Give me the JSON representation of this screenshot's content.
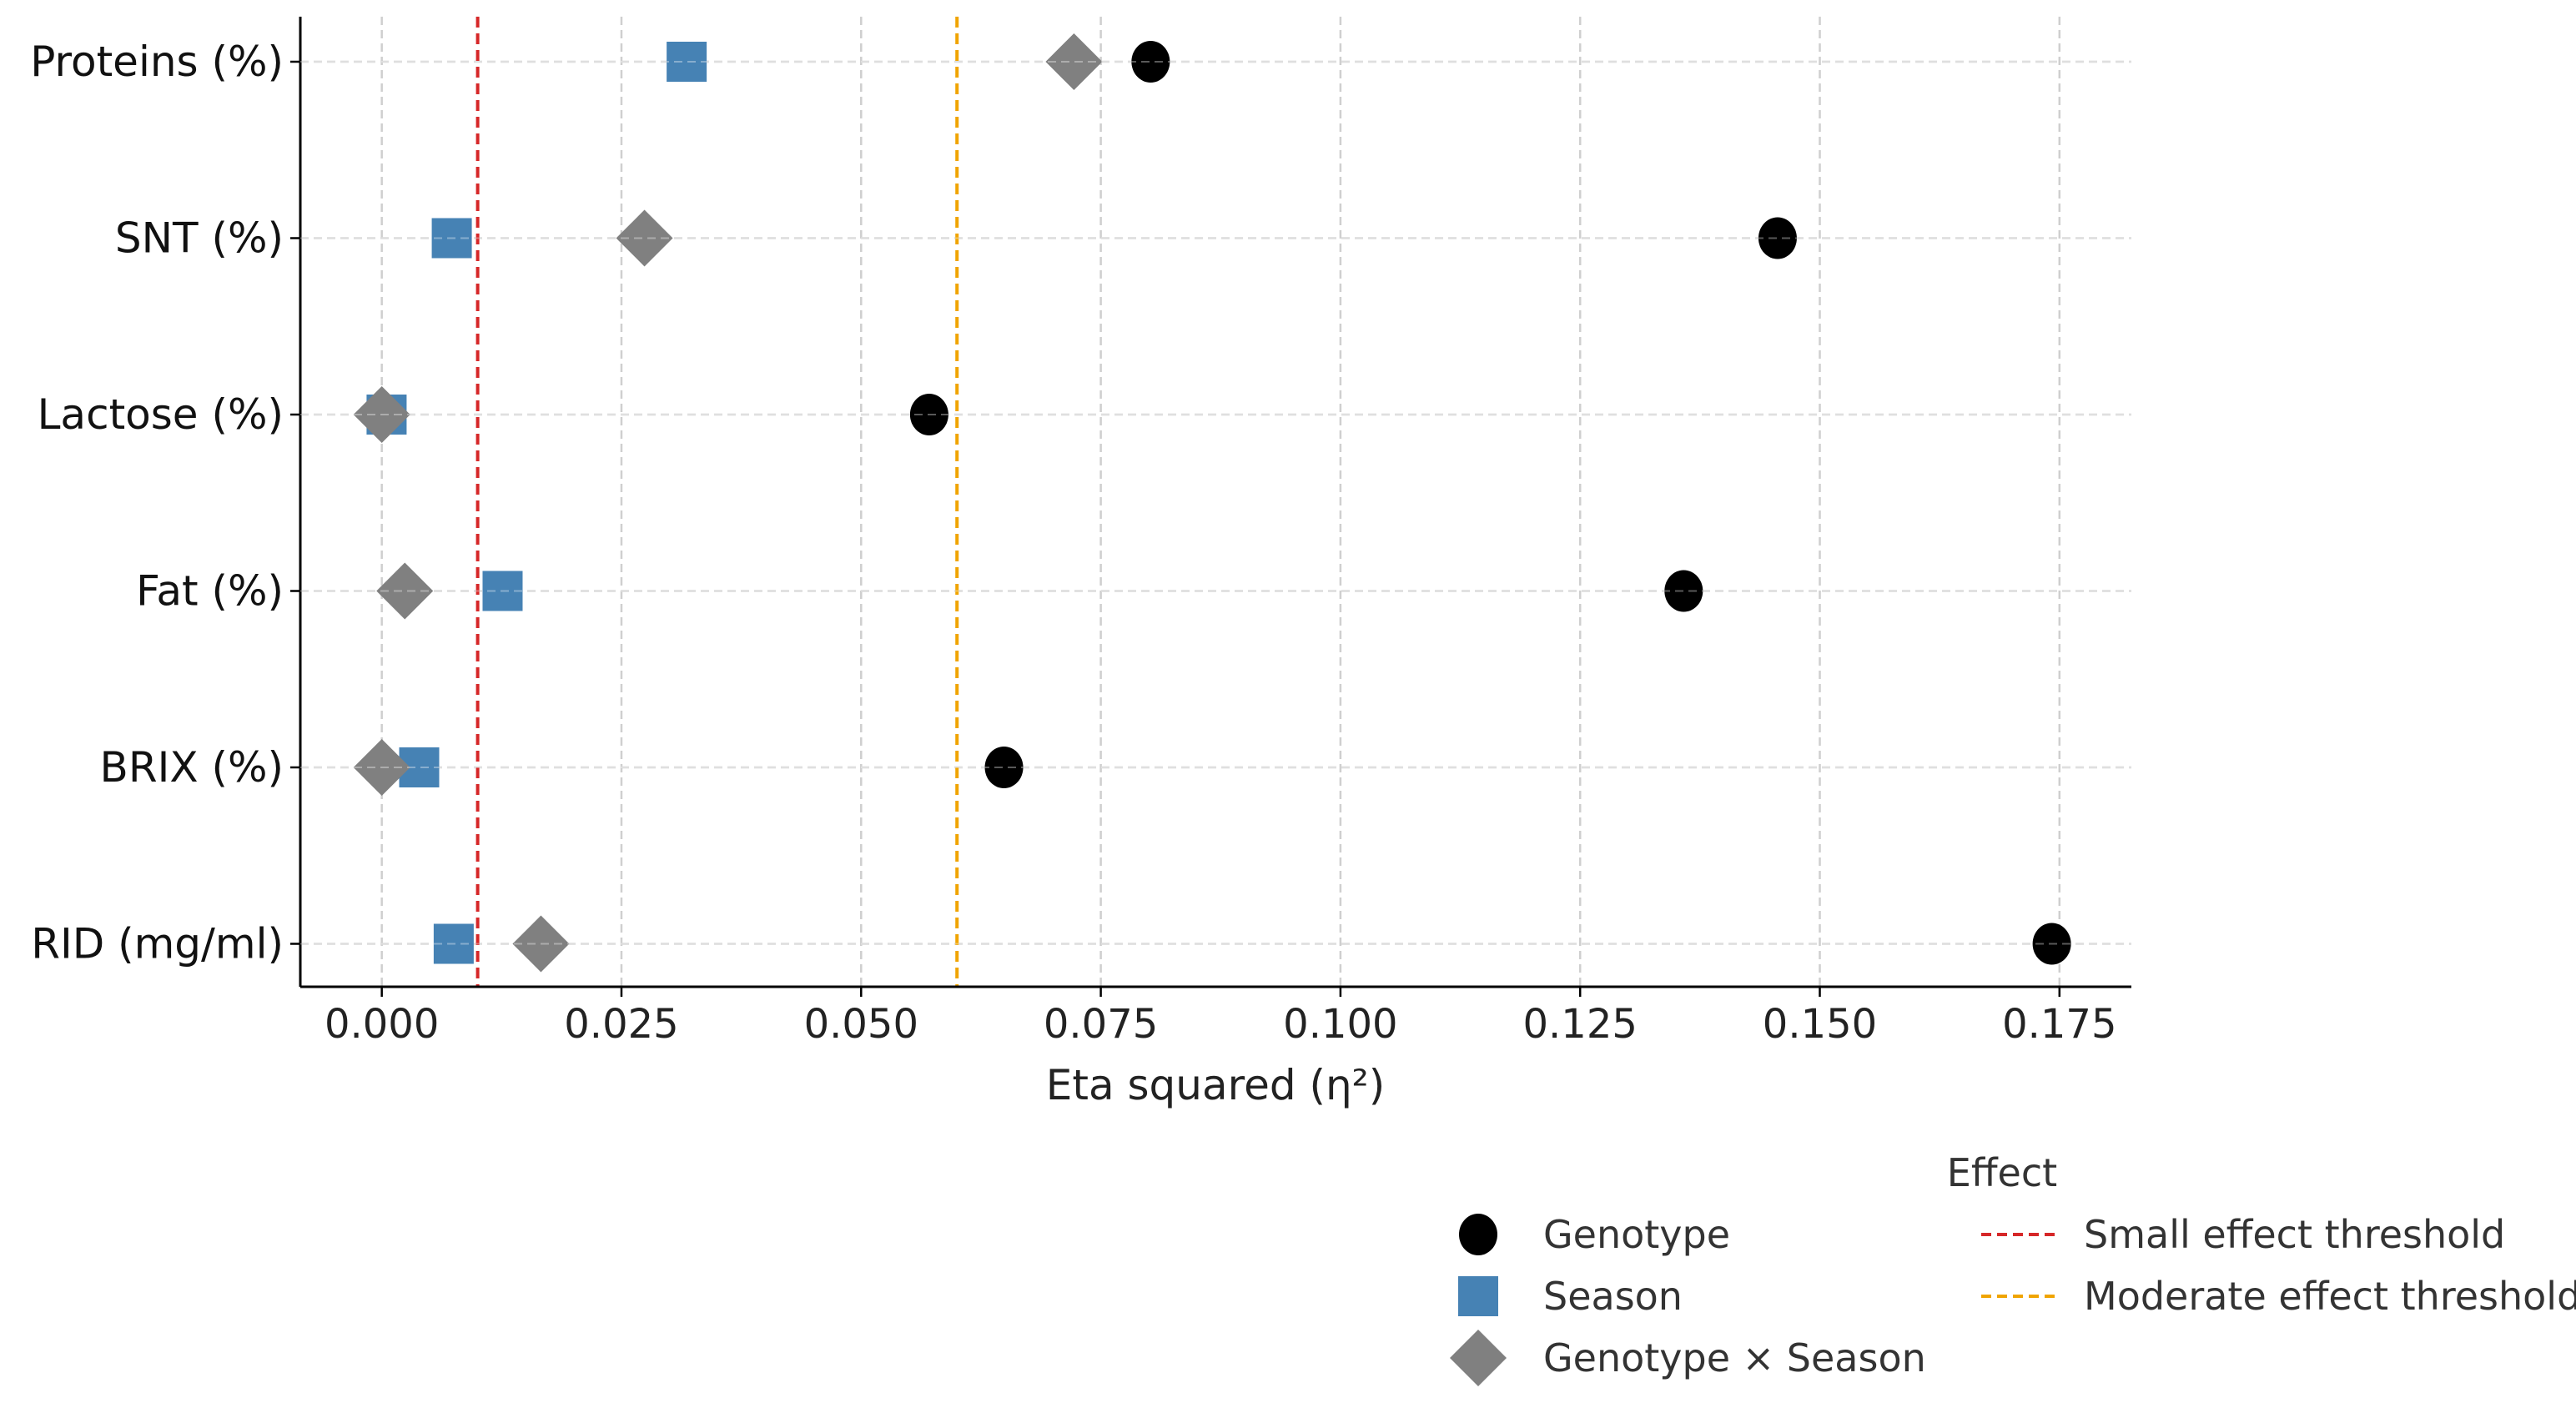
{
  "chart_data": {
    "type": "scatter",
    "title": "",
    "xlabel": "Eta squared (η²)",
    "ylabel": "",
    "xlim": [
      -0.0085,
      0.1825
    ],
    "x_ticks": [
      0.0,
      0.025,
      0.05,
      0.075,
      0.1,
      0.125,
      0.15,
      0.175
    ],
    "x_tick_labels": [
      "0.000",
      "0.025",
      "0.050",
      "0.075",
      "0.100",
      "0.125",
      "0.150",
      "0.175"
    ],
    "categories": [
      "Proteins (%)",
      "SNT (%)",
      "Lactose (%)",
      "Fat (%)",
      "BRIX (%)",
      "RID (mg/ml)"
    ],
    "grid": true,
    "series": [
      {
        "name": "Genotype",
        "marker": "circle",
        "color": "#000000",
        "values": [
          0.0802,
          0.1456,
          0.0571,
          0.1358,
          0.0649,
          0.1742
        ]
      },
      {
        "name": "Season",
        "marker": "square",
        "color": "#4682b4",
        "values": [
          0.0318,
          0.0073,
          0.0005,
          0.0126,
          0.0039,
          0.0075
        ]
      },
      {
        "name": "Genotype × Season",
        "marker": "diamond",
        "color": "#808080",
        "values": [
          0.0722,
          0.0274,
          0.0,
          0.0024,
          0.0,
          0.0166
        ]
      }
    ],
    "thresholds": [
      {
        "name": "Small effect threshold",
        "value": 0.01,
        "color": "#d62728"
      },
      {
        "name": "Moderate effect threshold",
        "value": 0.06,
        "color": "#f0a400"
      }
    ],
    "legend": {
      "title": "Effect",
      "placement": "bottom-right"
    }
  }
}
